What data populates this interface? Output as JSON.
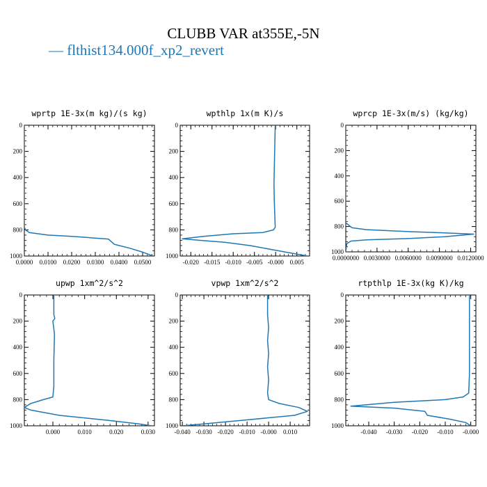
{
  "figure": {
    "title": "CLUBB VAR at355E,-5N",
    "legend": [
      {
        "marker": "—",
        "label": "flthist134.000f_xp2_revert",
        "color": "#1f77b4"
      }
    ],
    "series_color": "#1f77b4"
  },
  "chart_data": [
    {
      "type": "line",
      "title": "wprtp  1E-3x(m kg)/(s kg)",
      "xlim": [
        0.0,
        0.055
      ],
      "ylim": [
        1000,
        0
      ],
      "xticks": [
        0.0,
        0.01,
        0.02,
        0.03,
        0.04,
        0.05
      ],
      "xtick_labels": [
        "0.0000",
        "0.0100",
        "0.0200",
        "0.0300",
        "0.0400",
        "0.0500"
      ],
      "yticks": [
        0,
        200,
        400,
        600,
        800,
        1000
      ],
      "ytick_labels": [
        "0",
        "200",
        "400",
        "600",
        "800",
        "1000"
      ],
      "series": [
        {
          "x": [
            0.0,
            0.0,
            0.0,
            0.0,
            0.0,
            0.0005,
            0.002,
            0.01,
            0.02,
            0.028,
            0.0355,
            0.038,
            0.0445,
            0.05,
            0.0545
          ],
          "y": [
            0,
            200,
            400,
            600,
            780,
            800,
            820,
            840,
            850,
            860,
            870,
            910,
            940,
            970,
            1000
          ]
        }
      ]
    },
    {
      "type": "line",
      "title": "wpthlp  1x(m K)/s",
      "xlim": [
        -0.0225,
        0.008
      ],
      "ylim": [
        1000,
        0
      ],
      "xticks": [
        -0.02,
        -0.015,
        -0.01,
        -0.005,
        0.0,
        0.005
      ],
      "xtick_labels": [
        "-0.020",
        "-0.015",
        "-0.010",
        "-0.005",
        "-0.000",
        "0.005"
      ],
      "yticks": [
        0,
        200,
        400,
        600,
        800,
        1000
      ],
      "ytick_labels": [
        "0",
        "200",
        "400",
        "600",
        "800",
        "1000"
      ],
      "series": [
        {
          "x": [
            -0.0001,
            -0.0002,
            -0.0003,
            -0.0004,
            -0.0003,
            -0.0001,
            -0.0005,
            -0.003,
            -0.01,
            -0.017,
            -0.022,
            -0.018,
            -0.012,
            -0.006,
            -0.001,
            0.0075
          ],
          "y": [
            0,
            150,
            300,
            450,
            600,
            780,
            800,
            820,
            830,
            850,
            868,
            880,
            895,
            920,
            950,
            1000
          ]
        }
      ]
    },
    {
      "type": "line",
      "title": "wprcp  1E-3x(m/s) (kg/kg)",
      "xlim": [
        0.0,
        0.0125
      ],
      "ylim": [
        1000,
        0
      ],
      "xticks": [
        0.0,
        0.003,
        0.006,
        0.009,
        0.012
      ],
      "xtick_labels": [
        "0.0000000",
        "0.0030000",
        "0.0060000",
        "0.0090000",
        "0.0120000"
      ],
      "yticks": [
        0,
        200,
        400,
        600,
        800,
        1000
      ],
      "ytick_labels": [
        "0",
        "200",
        "400",
        "600",
        "800",
        "1000"
      ],
      "series": [
        {
          "x": [
            0.0,
            0.0,
            0.0,
            0.0,
            0.0003,
            0.0006,
            0.002,
            0.006,
            0.0095,
            0.0123,
            0.0095,
            0.006,
            0.002,
            0.0005,
            0.0001,
            0.0
          ],
          "y": [
            0,
            400,
            700,
            770,
            790,
            810,
            825,
            840,
            850,
            860,
            880,
            895,
            905,
            915,
            935,
            1000
          ]
        }
      ]
    },
    {
      "type": "line",
      "title": "upwp  1xm^2/s^2",
      "xlim": [
        -0.009,
        0.032
      ],
      "ylim": [
        1000,
        0
      ],
      "xticks": [
        0.0,
        0.01,
        0.02,
        0.03
      ],
      "xtick_labels": [
        "0.000",
        "0.010",
        "0.020",
        "0.030"
      ],
      "yticks": [
        0,
        200,
        400,
        600,
        800,
        1000
      ],
      "ytick_labels": [
        "0",
        "200",
        "400",
        "600",
        "800",
        "1000"
      ],
      "series": [
        {
          "x": [
            0.0003,
            0.0003,
            0.0006,
            0.0,
            0.0005,
            0.0003,
            0.0003,
            0.0,
            -0.003,
            -0.007,
            -0.009,
            -0.007,
            0.002,
            0.018,
            0.027,
            0.031
          ],
          "y": [
            0,
            150,
            180,
            200,
            300,
            500,
            700,
            780,
            800,
            830,
            860,
            880,
            920,
            960,
            985,
            1000
          ]
        }
      ]
    },
    {
      "type": "line",
      "title": "vpwp  1xm^2/s^2",
      "xlim": [
        -0.041,
        0.019
      ],
      "ylim": [
        1000,
        0
      ],
      "xticks": [
        -0.04,
        -0.03,
        -0.02,
        -0.01,
        0.0,
        0.01
      ],
      "xtick_labels": [
        "-0.040",
        "-0.030",
        "-0.020",
        "-0.010",
        "-0.000",
        "0.010"
      ],
      "yticks": [
        0,
        200,
        400,
        600,
        800,
        1000
      ],
      "ytick_labels": [
        "0",
        "200",
        "400",
        "600",
        "800",
        "1000"
      ],
      "series": [
        {
          "x": [
            -0.0005,
            -0.0005,
            0.0,
            -0.0005,
            0.0,
            -0.0005,
            0.0,
            -0.0005,
            0.0,
            0.005,
            0.014,
            0.018,
            0.012,
            -0.01,
            -0.03,
            -0.04
          ],
          "y": [
            0,
            150,
            250,
            350,
            450,
            550,
            650,
            750,
            800,
            830,
            860,
            890,
            920,
            955,
            985,
            1000
          ]
        }
      ]
    },
    {
      "type": "line",
      "title": "rtpthlp  1E-3x(kg K)/kg",
      "xlim": [
        -0.049,
        0.002
      ],
      "ylim": [
        1000,
        0
      ],
      "xticks": [
        -0.04,
        -0.03,
        -0.02,
        -0.01,
        0.0
      ],
      "xtick_labels": [
        "-0.040",
        "-0.030",
        "-0.020",
        "-0.010",
        "-0.000"
      ],
      "yticks": [
        0,
        200,
        400,
        600,
        800,
        1000
      ],
      "ytick_labels": [
        "0",
        "200",
        "400",
        "600",
        "800",
        "1000"
      ],
      "series": [
        {
          "x": [
            -0.0005,
            -0.0005,
            -0.0005,
            -0.0008,
            -0.003,
            -0.01,
            -0.03,
            -0.047,
            -0.03,
            -0.018,
            -0.017,
            -0.008,
            -0.002,
            0.0
          ],
          "y": [
            0,
            300,
            600,
            750,
            780,
            800,
            820,
            850,
            865,
            890,
            920,
            950,
            975,
            1000
          ]
        }
      ]
    }
  ]
}
